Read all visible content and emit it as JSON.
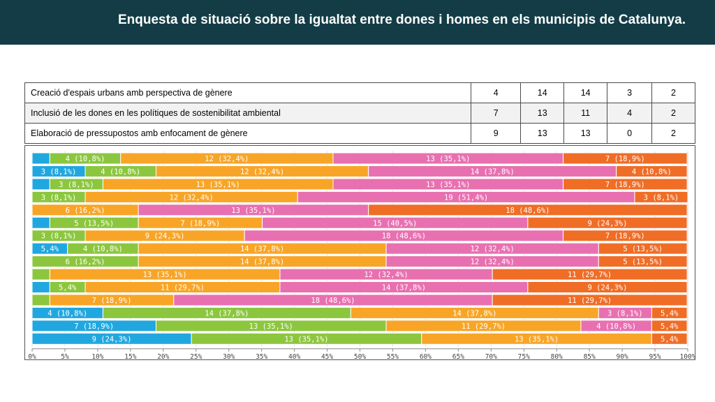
{
  "header": {
    "title": "Enquesta de situació sobre la  igualtat entre dones i homes en els municipis de Catalunya."
  },
  "table": {
    "rows": [
      {
        "label": "Creació d'espais urbans amb perspectiva de gènere",
        "values": [
          "4",
          "14",
          "14",
          "3",
          "2"
        ]
      },
      {
        "label": "Inclusió de les dones en les polítiques de sostenibilitat ambiental",
        "values": [
          "7",
          "13",
          "11",
          "4",
          "2"
        ]
      },
      {
        "label": "Elaboració de pressupostos amb enfocament de gènere",
        "values": [
          "9",
          "13",
          "13",
          "0",
          "2"
        ]
      }
    ]
  },
  "colors": {
    "c1": "#21a7e0",
    "c2": "#8cc63e",
    "c3": "#f8a527",
    "c4": "#e870b0",
    "c5": "#f06d26",
    "header_bg": "#133c46"
  },
  "chart_data": {
    "type": "bar",
    "orientation": "horizontal",
    "stacked": true,
    "xlim": [
      0,
      100
    ],
    "x_ticks": [
      "0%",
      "5%",
      "10%",
      "15%",
      "20%",
      "25%",
      "30%",
      "35%",
      "40%",
      "45%",
      "50%",
      "55%",
      "60%",
      "65%",
      "70%",
      "75%",
      "80%",
      "85%",
      "90%",
      "95%",
      "100%"
    ],
    "bars": [
      {
        "values": [
          2.7,
          10.8,
          32.4,
          35.1,
          18.9
        ],
        "labels": [
          "",
          "4 (10,8%)",
          "12 (32,4%)",
          "13 (35,1%)",
          "7 (18,9%)"
        ]
      },
      {
        "values": [
          8.1,
          10.8,
          32.4,
          37.8,
          10.8
        ],
        "labels": [
          "3 (8,1%)",
          "4 (10,8%)",
          "12 (32,4%)",
          "14 (37,8%)",
          "4 (10,8%)"
        ]
      },
      {
        "values": [
          2.7,
          8.1,
          35.1,
          35.1,
          18.9
        ],
        "labels": [
          "",
          "3 (8,1%)",
          "13 (35,1%)",
          "13 (35,1%)",
          "7 (18,9%)"
        ]
      },
      {
        "values": [
          0,
          8.1,
          32.4,
          51.4,
          8.1
        ],
        "labels": [
          "",
          "3 (8,1%)",
          "12 (32,4%)",
          "19 (51,4%)",
          "3 (8,1%)"
        ]
      },
      {
        "values": [
          0,
          0,
          16.2,
          35.1,
          48.6
        ],
        "labels": [
          "",
          "",
          "6 (16,2%)",
          "13 (35,1%)",
          "18 (48,6%)"
        ]
      },
      {
        "values": [
          2.7,
          13.5,
          18.9,
          40.5,
          24.3
        ],
        "labels": [
          "",
          "5 (13,5%)",
          "7 (18,9%)",
          "15 (40,5%)",
          "9 (24,3%)"
        ]
      },
      {
        "values": [
          0,
          8.1,
          24.3,
          48.6,
          18.9
        ],
        "labels": [
          "",
          "3 (8,1%)",
          "9 (24,3%)",
          "18 (48,6%)",
          "7 (18,9%)"
        ]
      },
      {
        "values": [
          5.4,
          10.8,
          37.8,
          32.4,
          13.5
        ],
        "labels": [
          "5,4%",
          "4 (10,8%)",
          "14 (37,8%)",
          "12 (32,4%)",
          "5 (13,5%)"
        ]
      },
      {
        "values": [
          0,
          16.2,
          37.8,
          32.4,
          13.5
        ],
        "labels": [
          "",
          "6 (16,2%)",
          "14 (37,8%)",
          "12 (32,4%)",
          "5 (13,5%)"
        ]
      },
      {
        "values": [
          0,
          2.7,
          35.1,
          32.4,
          29.7
        ],
        "labels": [
          "",
          "",
          "13 (35,1%)",
          "12 (32,4%)",
          "11 (29,7%)"
        ]
      },
      {
        "values": [
          2.7,
          5.4,
          29.7,
          37.8,
          24.3
        ],
        "labels": [
          "",
          "5,4%",
          "11 (29,7%)",
          "14 (37,8%)",
          "9 (24,3%)"
        ]
      },
      {
        "values": [
          0,
          2.7,
          18.9,
          48.6,
          29.7
        ],
        "labels": [
          "",
          "",
          "7 (18,9%)",
          "18 (48,6%)",
          "11 (29,7%)"
        ]
      },
      {
        "values": [
          10.8,
          37.8,
          37.8,
          8.1,
          5.4
        ],
        "labels": [
          "4 (10,8%)",
          "14 (37,8%)",
          "14 (37,8%)",
          "3 (8,1%)",
          "5,4%"
        ]
      },
      {
        "values": [
          18.9,
          35.1,
          29.7,
          10.8,
          5.4
        ],
        "labels": [
          "7 (18,9%)",
          "13 (35,1%)",
          "11 (29,7%)",
          "4 (10,8%)",
          "5,4%"
        ]
      },
      {
        "values": [
          24.3,
          35.1,
          35.1,
          0,
          5.4
        ],
        "labels": [
          "9 (24,3%)",
          "13 (35,1%)",
          "13 (35,1%)",
          "",
          "5,4%"
        ]
      }
    ]
  }
}
